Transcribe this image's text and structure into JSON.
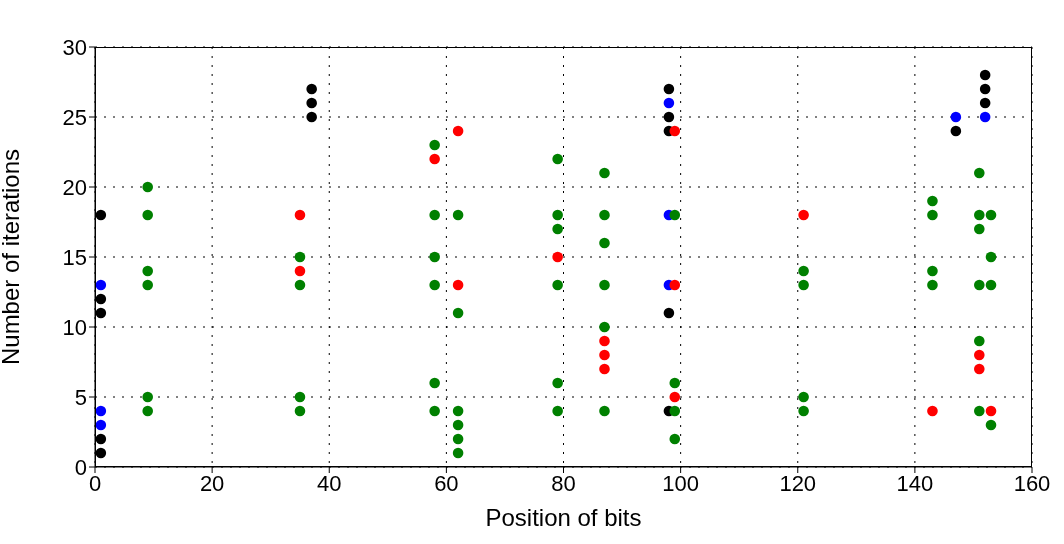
{
  "chart_data": {
    "type": "scatter",
    "xlabel": "Position of bits",
    "ylabel": "Number of iterations",
    "xlim": [
      0,
      160
    ],
    "xticks": [
      0,
      20,
      40,
      60,
      80,
      100,
      120,
      140,
      160
    ],
    "ylim": [
      0,
      30
    ],
    "yticks": [
      0,
      5,
      10,
      15,
      20,
      25,
      30
    ],
    "grid": true,
    "marker": "circle",
    "series": [
      {
        "color": "#000000",
        "x": [
          1,
          1,
          1,
          1,
          1,
          37,
          37,
          37,
          98,
          98,
          98,
          98,
          98,
          147,
          152,
          152,
          152
        ],
        "values": [
          18,
          12,
          11,
          2,
          1,
          27,
          26,
          25,
          27,
          25,
          24,
          11,
          4,
          24,
          28,
          27,
          26
        ]
      },
      {
        "color": "#0000ff",
        "x": [
          1,
          1,
          1,
          98,
          98,
          98,
          147,
          152
        ],
        "values": [
          13,
          4,
          3,
          26,
          18,
          13,
          25,
          25
        ]
      },
      {
        "color": "#ff0000",
        "x": [
          35,
          35,
          58,
          62,
          62,
          79,
          87,
          87,
          87,
          99,
          99,
          99,
          121,
          143,
          151,
          151,
          153
        ],
        "values": [
          18,
          14,
          22,
          24,
          13,
          15,
          9,
          8,
          7,
          24,
          13,
          5,
          18,
          4,
          8,
          7,
          4
        ]
      },
      {
        "color": "#008000",
        "x": [
          9,
          9,
          9,
          9,
          9,
          9,
          35,
          35,
          35,
          35,
          58,
          58,
          58,
          58,
          58,
          58,
          62,
          62,
          62,
          62,
          62,
          62,
          79,
          79,
          79,
          79,
          79,
          79,
          87,
          87,
          87,
          87,
          87,
          87,
          99,
          99,
          99,
          99,
          121,
          121,
          121,
          121,
          143,
          143,
          143,
          143,
          151,
          151,
          151,
          151,
          151,
          151,
          153,
          153,
          153,
          153
        ],
        "values": [
          20,
          18,
          14,
          13,
          5,
          4,
          15,
          13,
          5,
          4,
          23,
          18,
          15,
          13,
          6,
          4,
          18,
          11,
          4,
          3,
          2,
          1,
          22,
          18,
          17,
          13,
          6,
          4,
          21,
          18,
          16,
          13,
          10,
          4,
          18,
          6,
          4,
          2,
          14,
          13,
          5,
          4,
          19,
          18,
          14,
          13,
          21,
          18,
          17,
          13,
          9,
          4,
          18,
          15,
          13,
          3
        ]
      }
    ]
  }
}
